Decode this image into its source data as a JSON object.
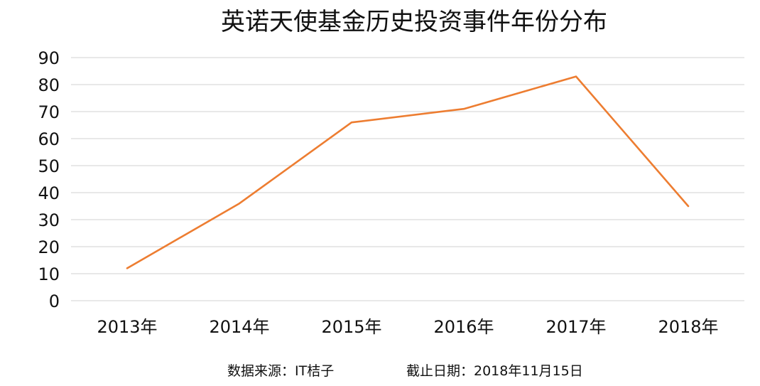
{
  "chart_data": {
    "type": "line",
    "title": "英诺天使基金历史投资事件年份分布",
    "xlabel": "",
    "ylabel": "",
    "categories": [
      "2013年",
      "2014年",
      "2015年",
      "2016年",
      "2017年",
      "2018年"
    ],
    "series": [
      {
        "values": [
          12,
          36,
          66,
          71,
          83,
          35
        ],
        "color": "#ED7D31"
      }
    ],
    "ylim": [
      0,
      90
    ],
    "yticks": [
      0,
      10,
      20,
      30,
      40,
      50,
      60,
      70,
      80,
      90
    ],
    "grid": true,
    "legend": "none",
    "gridline_color": "#D9D9D9"
  },
  "footer": {
    "source": "数据来源：IT桔子",
    "date": "截止日期：2018年11月15日"
  }
}
